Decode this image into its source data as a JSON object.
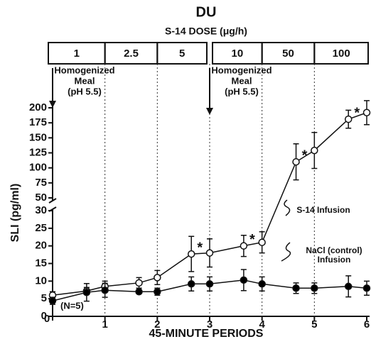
{
  "chart_data": {
    "type": "line",
    "title": "DU",
    "dose_title": "S-14 DOSE (μg/h)",
    "doses": [
      "1",
      "2.5",
      "5",
      "10",
      "50",
      "100"
    ],
    "x_label": "45-MINUTE PERIODS",
    "y_label": "SLI (pg/ml)",
    "n_label": "(N=5)",
    "asterisk": "*",
    "meals": [
      {
        "x": 0,
        "lines": [
          "Homogenized",
          "Meal",
          "(pH 5.5)"
        ]
      },
      {
        "x": 3,
        "lines": [
          "Homogenized",
          "Meal",
          "(pH 5.5)"
        ]
      }
    ],
    "x": [
      0,
      0.65,
      1,
      1.65,
      2,
      2.65,
      3,
      3.65,
      4,
      4.65,
      5,
      5.65,
      6
    ],
    "series": [
      {
        "name": "S-14 Infusion",
        "color": "#ffffff",
        "values": [
          6,
          7.2,
          8.5,
          9.5,
          11,
          17.7,
          18,
          20,
          21,
          110,
          129,
          181,
          192
        ],
        "errors": [
          1,
          1,
          1.5,
          1.5,
          2,
          5,
          4,
          3,
          3,
          30,
          30,
          15,
          20
        ],
        "significant": [
          5,
          7,
          9,
          11
        ]
      },
      {
        "name": "NaCl (control) Infusion",
        "color": "#000000",
        "values": [
          4.4,
          6.8,
          7.4,
          7,
          7,
          9.2,
          9.2,
          10.3,
          9.2,
          8,
          8,
          8.5,
          8
        ],
        "errors": [
          1,
          2.5,
          2,
          0.5,
          1,
          2,
          2,
          3,
          2,
          1.5,
          1.5,
          3,
          2
        ]
      }
    ],
    "xlim": [
      0,
      6
    ],
    "xticks": [
      0,
      1,
      2,
      3,
      4,
      5,
      6
    ],
    "ylim": [
      0,
      200
    ],
    "ybreak": [
      30,
      50
    ],
    "yticks": [
      0,
      5,
      10,
      15,
      20,
      25,
      30,
      50,
      75,
      100,
      125,
      150,
      175,
      200
    ]
  }
}
